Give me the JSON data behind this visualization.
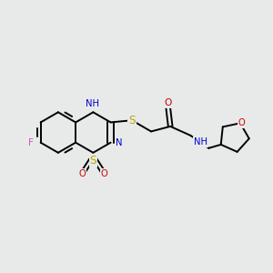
{
  "background_color": "#e8eaea",
  "fig_size": [
    3.0,
    3.0
  ],
  "dpi": 100,
  "bond_color": "#000000",
  "bond_lw": 1.4,
  "atom_colors": {
    "F": "#cc55cc",
    "S": "#bbaa00",
    "N": "#0000cc",
    "O": "#cc0000",
    "NH": "#0000cc",
    "C": "#000000"
  },
  "font_size": 7.2,
  "xlim": [
    -2.6,
    2.8
  ],
  "ylim": [
    -1.7,
    1.7
  ]
}
